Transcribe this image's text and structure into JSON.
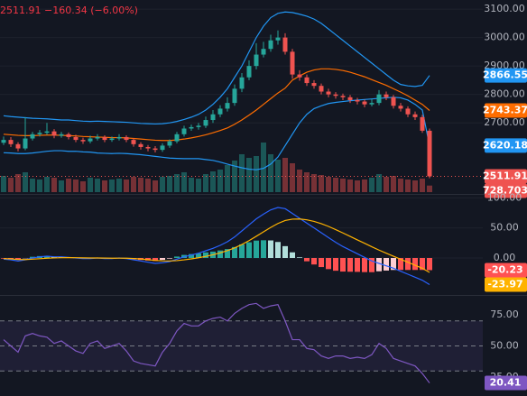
{
  "chart_data": [
    {
      "type": "candlestick",
      "legend": {
        "close": "2511.91",
        "change": "−160.34",
        "change_pct": "(−6.00%)"
      },
      "up_color": "#26a69a",
      "down_color": "#ef5350",
      "grid": true,
      "ylim": [
        2450,
        3132
      ],
      "yticks": [
        {
          "value": 3100,
          "label": "3100.00"
        },
        {
          "value": 3000,
          "label": "3000.00"
        },
        {
          "value": 2900,
          "label": "2900.00"
        },
        {
          "value": 2800,
          "label": "2800.00"
        },
        {
          "value": 2700,
          "label": "2700.00"
        }
      ],
      "volume_ylim": [
        0,
        8000
      ],
      "open": [
        2630,
        2640,
        2625,
        2610,
        2645,
        2660,
        2665,
        2670,
        2655,
        2660,
        2650,
        2640,
        2635,
        2645,
        2650,
        2640,
        2645,
        2650,
        2640,
        2625,
        2615,
        2610,
        2605,
        2620,
        2635,
        2660,
        2680,
        2685,
        2690,
        2710,
        2730,
        2750,
        2770,
        2820,
        2860,
        2900,
        2940,
        2960,
        2990,
        3000,
        2950,
        2870,
        2860,
        2840,
        2830,
        2810,
        2800,
        2795,
        2790,
        2780,
        2775,
        2765,
        2770,
        2800,
        2790,
        2760,
        2750,
        2730,
        2720,
        2672.25
      ],
      "high": [
        2652,
        2650,
        2632,
        2720,
        2668,
        2675,
        2700,
        2678,
        2668,
        2666,
        2658,
        2648,
        2655,
        2660,
        2656,
        2652,
        2660,
        2656,
        2646,
        2632,
        2622,
        2618,
        2628,
        2642,
        2668,
        2690,
        2694,
        2700,
        2722,
        2745,
        2762,
        2790,
        2835,
        2875,
        2920,
        2980,
        2985,
        3010,
        3025,
        3015,
        2960,
        2885,
        2870,
        2850,
        2838,
        2820,
        2808,
        2803,
        2798,
        2788,
        2782,
        2785,
        2815,
        2810,
        2798,
        2770,
        2758,
        2740,
        2728,
        2680
      ],
      "low": [
        2622,
        2615,
        2600,
        2604,
        2638,
        2652,
        2658,
        2646,
        2648,
        2642,
        2632,
        2626,
        2628,
        2638,
        2632,
        2633,
        2638,
        2632,
        2616,
        2606,
        2600,
        2596,
        2598,
        2612,
        2628,
        2652,
        2672,
        2676,
        2682,
        2700,
        2720,
        2740,
        2760,
        2808,
        2850,
        2888,
        2930,
        2950,
        2975,
        2940,
        2855,
        2848,
        2830,
        2820,
        2800,
        2790,
        2785,
        2780,
        2770,
        2765,
        2755,
        2758,
        2762,
        2780,
        2750,
        2740,
        2720,
        2710,
        2665,
        2505
      ],
      "close": [
        2640,
        2625,
        2610,
        2645,
        2660,
        2665,
        2670,
        2655,
        2660,
        2650,
        2640,
        2635,
        2645,
        2650,
        2640,
        2645,
        2650,
        2640,
        2625,
        2615,
        2610,
        2605,
        2620,
        2635,
        2660,
        2680,
        2685,
        2690,
        2710,
        2730,
        2750,
        2770,
        2820,
        2860,
        2900,
        2940,
        2960,
        2990,
        3000,
        2950,
        2870,
        2860,
        2840,
        2830,
        2810,
        2800,
        2795,
        2790,
        2780,
        2775,
        2765,
        2770,
        2800,
        2790,
        2760,
        2750,
        2730,
        2720,
        2672.25,
        2511.91
      ],
      "volume": [
        1800,
        1600,
        2000,
        2200,
        1500,
        1400,
        1700,
        1600,
        1300,
        1500,
        1400,
        1200,
        1600,
        1500,
        1300,
        1400,
        1500,
        1400,
        1700,
        1600,
        1500,
        1300,
        1700,
        1800,
        2000,
        2200,
        1600,
        1500,
        2000,
        2300,
        2500,
        3000,
        3500,
        4200,
        3800,
        4000,
        5500,
        4200,
        3600,
        3800,
        3200,
        2500,
        2200,
        2000,
        1900,
        1700,
        1600,
        1500,
        1400,
        1300,
        1400,
        1600,
        2000,
        1700,
        1800,
        1500,
        1400,
        1300,
        1500,
        728.703
      ],
      "series": [
        {
          "color": "#2196f3",
          "last_value_label": true,
          "values": [
            2725,
            2722,
            2720,
            2718,
            2716,
            2715,
            2714,
            2712,
            2710,
            2710,
            2708,
            2706,
            2705,
            2706,
            2705,
            2704,
            2703,
            2702,
            2700,
            2698,
            2697,
            2696,
            2697,
            2700,
            2705,
            2712,
            2720,
            2730,
            2745,
            2765,
            2790,
            2820,
            2860,
            2900,
            2950,
            3000,
            3040,
            3070,
            3085,
            3090,
            3088,
            3082,
            3075,
            3065,
            3050,
            3030,
            3010,
            2990,
            2970,
            2950,
            2930,
            2910,
            2890,
            2870,
            2850,
            2835,
            2830,
            2828,
            2832,
            2866.55
          ]
        },
        {
          "color": "#ff6d00",
          "last_value_label": true,
          "values": [
            2660,
            2658,
            2656,
            2655,
            2655,
            2656,
            2657,
            2657,
            2656,
            2655,
            2654,
            2652,
            2651,
            2650,
            2649,
            2648,
            2648,
            2647,
            2645,
            2643,
            2641,
            2639,
            2638,
            2638,
            2640,
            2643,
            2647,
            2652,
            2658,
            2665,
            2673,
            2682,
            2695,
            2710,
            2727,
            2745,
            2765,
            2785,
            2805,
            2822,
            2850,
            2865,
            2878,
            2886,
            2890,
            2890,
            2888,
            2884,
            2878,
            2870,
            2862,
            2852,
            2842,
            2832,
            2820,
            2808,
            2795,
            2780,
            2765,
            2743.37
          ]
        },
        {
          "color": "#2196f3",
          "last_value_label": true,
          "values": [
            2595,
            2594,
            2592,
            2592,
            2594,
            2597,
            2600,
            2602,
            2602,
            2600,
            2600,
            2598,
            2597,
            2594,
            2593,
            2592,
            2593,
            2592,
            2590,
            2588,
            2585,
            2582,
            2579,
            2576,
            2575,
            2574,
            2574,
            2574,
            2571,
            2568,
            2562,
            2555,
            2548,
            2542,
            2537,
            2535,
            2540,
            2555,
            2580,
            2620,
            2660,
            2700,
            2730,
            2750,
            2760,
            2768,
            2772,
            2775,
            2778,
            2780,
            2782,
            2784,
            2786,
            2788,
            2790,
            2788,
            2780,
            2765,
            2745,
            2620.18
          ]
        }
      ]
    },
    {
      "type": "line",
      "grid": true,
      "ylim": [
        -60,
        105
      ],
      "yticks": [
        {
          "value": 100,
          "label": "100.00"
        },
        {
          "value": 50,
          "label": "50.00"
        },
        {
          "value": 0,
          "label": "0.00"
        }
      ],
      "series": [
        {
          "style": "histogram",
          "colors": [
            "#26a69a",
            "#b2dfdb",
            "#ffcdd2",
            "#ff5252"
          ],
          "color": "#ff5252",
          "last_value_label": true,
          "values": [
            -1,
            -1.5,
            -2.5,
            -0.4,
            2,
            3.2,
            3.4,
            1.9,
            1.5,
            0.4,
            -0.5,
            -1.2,
            -1,
            0,
            -0.8,
            -0.6,
            0.3,
            -0.6,
            -2.1,
            -3.3,
            -4.2,
            -5,
            -3.2,
            -1,
            2.4,
            5.1,
            6.5,
            7.6,
            9.3,
            10.6,
            12.5,
            14.8,
            18.2,
            22.6,
            26.1,
            28.9,
            29.5,
            29.2,
            26.6,
            19.7,
            9.4,
            1.1,
            -5.5,
            -10.8,
            -15.1,
            -18.5,
            -21.2,
            -22.6,
            -22.9,
            -23.1,
            -23.5,
            -23.6,
            -22.1,
            -20.9,
            -19.9,
            -19.9,
            -19.9,
            -19.9,
            -19.9,
            -20.23
          ]
        },
        {
          "color": "#2962ff",
          "values": [
            -2,
            -3,
            -5,
            -3,
            0,
            2,
            3,
            2,
            2,
            1,
            0,
            -1,
            -1,
            0,
            -1,
            -1,
            0,
            -1,
            -3,
            -5,
            -7,
            -9,
            -8,
            -6,
            -2,
            2,
            5,
            8,
            12,
            16,
            21,
            27,
            35,
            45,
            55,
            65,
            73,
            80,
            84,
            82,
            74,
            66,
            58,
            50,
            42,
            34,
            26,
            19,
            13,
            7,
            1,
            -5,
            -9,
            -13,
            -17,
            -22,
            -27,
            -32,
            -37,
            -44.2
          ]
        },
        {
          "color": "#ffb300",
          "last_value_label": true,
          "values": [
            -1,
            -1.5,
            -2.5,
            -2.6,
            -2,
            -1.2,
            -0.4,
            0.1,
            0.5,
            0.6,
            0.5,
            0.2,
            0,
            0,
            -0.2,
            -0.4,
            -0.3,
            -0.4,
            -0.9,
            -1.7,
            -2.8,
            -4,
            -4.8,
            -5,
            -4.4,
            -3.1,
            -1.5,
            0.4,
            2.7,
            5.4,
            8.5,
            12.2,
            16.8,
            22.4,
            28.9,
            36.1,
            43.5,
            50.8,
            57.4,
            62.3,
            64.6,
            64.9,
            63.5,
            60.8,
            57.1,
            52.5,
            47.2,
            41.6,
            35.9,
            30.1,
            24.5,
            18.6,
            13.1,
            7.9,
            2.9,
            -2.1,
            -7.1,
            -12.1,
            -17.1,
            -23.97
          ]
        }
      ]
    },
    {
      "type": "line",
      "grid": false,
      "ylim": [
        10,
        90
      ],
      "yticks": [
        {
          "value": 75,
          "label": "75.00"
        },
        {
          "value": 50,
          "label": "50.00"
        },
        {
          "value": 25,
          "label": "25.00"
        }
      ],
      "bands": [
        70,
        50,
        30
      ],
      "band_fill": "rgba(126,87,194,0.12)",
      "series": [
        {
          "color": "#7e57c2",
          "last_value_label": true,
          "values": [
            55,
            50,
            45,
            58,
            60,
            58,
            57,
            52,
            54,
            50,
            46,
            44,
            52,
            54,
            48,
            50,
            52,
            46,
            38,
            36,
            35,
            34,
            45,
            52,
            62,
            68,
            66,
            66,
            70,
            72,
            73,
            70,
            76,
            80,
            83,
            84,
            80,
            82,
            83,
            70,
            55,
            55,
            48,
            47,
            42,
            40,
            42,
            42,
            40,
            41,
            40,
            43,
            52,
            48,
            40,
            38,
            36,
            34,
            28,
            20.41
          ]
        }
      ]
    }
  ]
}
